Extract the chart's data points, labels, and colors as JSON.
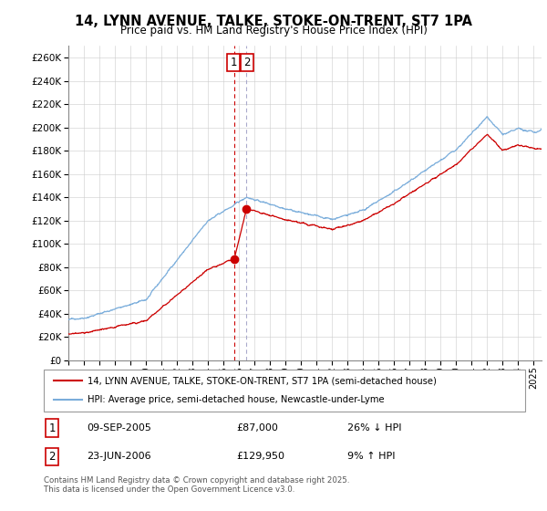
{
  "title": "14, LYNN AVENUE, TALKE, STOKE-ON-TRENT, ST7 1PA",
  "subtitle": "Price paid vs. HM Land Registry's House Price Index (HPI)",
  "legend_line1": "14, LYNN AVENUE, TALKE, STOKE-ON-TRENT, ST7 1PA (semi-detached house)",
  "legend_line2": "HPI: Average price, semi-detached house, Newcastle-under-Lyme",
  "footer": "Contains HM Land Registry data © Crown copyright and database right 2025.\nThis data is licensed under the Open Government Licence v3.0.",
  "transaction1_date": "09-SEP-2005",
  "transaction1_price": "£87,000",
  "transaction1_hpi": "26% ↓ HPI",
  "transaction2_date": "23-JUN-2006",
  "transaction2_price": "£129,950",
  "transaction2_hpi": "9% ↑ HPI",
  "color_property": "#cc0000",
  "color_hpi": "#7aaddb",
  "color_vline1": "#cc0000",
  "color_vline2": "#aaaacc",
  "ylim": [
    0,
    270000
  ],
  "yticks": [
    0,
    20000,
    40000,
    60000,
    80000,
    100000,
    120000,
    140000,
    160000,
    180000,
    200000,
    220000,
    240000,
    260000
  ],
  "transaction1_x": 2005.69,
  "transaction1_y": 87000,
  "transaction2_x": 2006.48,
  "transaction2_y": 129950,
  "xmin": 1995.0,
  "xmax": 2025.5
}
